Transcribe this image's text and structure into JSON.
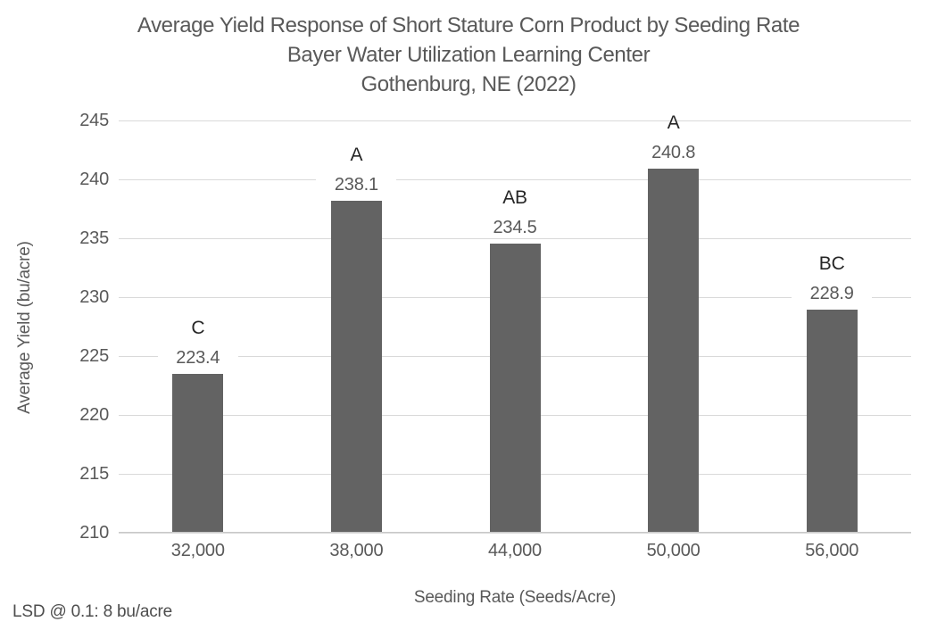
{
  "title": {
    "line1": "Average Yield Response of Short Stature Corn Product by Seeding Rate",
    "line2": "Bayer Water Utilization Learning Center",
    "line3": "Gothenburg, NE (2022)"
  },
  "chart_data": {
    "type": "bar",
    "title": "Average Yield Response of Short Stature Corn Product by Seeding Rate",
    "subtitle": "Bayer Water Utilization Learning Center",
    "subtitle2": "Gothenburg, NE (2022)",
    "categories": [
      "32,000",
      "38,000",
      "44,000",
      "50,000",
      "56,000"
    ],
    "values": [
      223.4,
      238.1,
      234.5,
      240.8,
      228.9
    ],
    "value_labels": [
      "223.4",
      "238.1",
      "234.5",
      "240.8",
      "228.9"
    ],
    "sig_letters": [
      "C",
      "A",
      "AB",
      "A",
      "BC"
    ],
    "xlabel": "Seeding Rate (Seeds/Acre)",
    "ylabel": "Average Yield (bu/acre)",
    "yticks": [
      210,
      215,
      220,
      225,
      230,
      235,
      240,
      245
    ],
    "ylim": [
      210,
      245
    ],
    "grid": true,
    "legend": "none",
    "bar_color": "#636363",
    "footnote": "LSD @ 0.1: 8 bu/acre"
  },
  "colors": {
    "bar": "#636363",
    "gridline": "#d9d9d9",
    "axis_line": "#c9c9c9",
    "text": "#595959",
    "letter_text": "#262626",
    "background": "#ffffff"
  }
}
